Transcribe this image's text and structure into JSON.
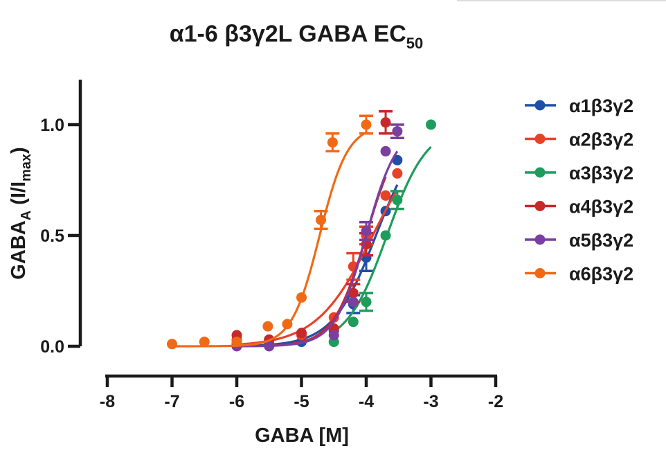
{
  "chart_data": {
    "type": "scatter",
    "title": "α1-6 β3γ2L GABA EC",
    "title_subscript": "50",
    "xlabel": "GABA [M]",
    "ylabel": "GABA",
    "ylabel_subscript": "A",
    "ylabel_suffix": " (I/I",
    "ylabel_suffix_subscript": "max",
    "ylabel_close": ")",
    "xlim": [
      -8,
      -2
    ],
    "ylim": [
      0,
      1.2
    ],
    "xticks": [
      -8,
      -7,
      -6,
      -5,
      -4,
      -3,
      -2
    ],
    "xtick_labels": [
      "-8",
      "-7",
      "-6",
      "-5",
      "-4",
      "-3",
      "-2"
    ],
    "yticks": [
      0,
      0.5,
      1
    ],
    "ytick_labels": [
      "0.0",
      "0.5",
      "1.0"
    ],
    "grid": false,
    "legend_position": "right",
    "series": [
      {
        "name": "α1β3γ2",
        "color": "#1f4fa8",
        "x": [
          -6,
          -5.5,
          -5,
          -4.5,
          -4.2,
          -4,
          -3.7,
          -3.52
        ],
        "y": [
          0.01,
          0.01,
          0.02,
          0.07,
          0.19,
          0.4,
          0.61,
          0.84
        ],
        "err": [
          0,
          0,
          0,
          0,
          0.04,
          0.06,
          0,
          0
        ],
        "fit": {
          "ec50_log": -3.85,
          "hill": 1.3
        }
      },
      {
        "name": "α2β3γ2",
        "color": "#e8412a",
        "x": [
          -6,
          -5.5,
          -5,
          -4.5,
          -4.2,
          -4,
          -3.7,
          -3.52
        ],
        "y": [
          0.03,
          0.03,
          0.05,
          0.13,
          0.36,
          0.5,
          0.68,
          0.78
        ],
        "err": [
          0,
          0,
          0,
          0,
          0.06,
          0.04,
          0,
          0
        ],
        "fit": {
          "ec50_log": -3.9,
          "hill": 1.0
        }
      },
      {
        "name": "α3β3γ2",
        "color": "#1e9c5c",
        "x": [
          -4.5,
          -4.2,
          -4,
          -3.7,
          -3.52,
          -3
        ],
        "y": [
          0.02,
          0.11,
          0.2,
          0.5,
          0.66,
          1.0
        ],
        "err": [
          0,
          0,
          0.04,
          0,
          0.04,
          0
        ],
        "fit": {
          "ec50_log": -3.68,
          "hill": 1.4
        }
      },
      {
        "name": "α4β3γ2",
        "color": "#c8282a",
        "x": [
          -6,
          -5.5,
          -5,
          -4.5,
          -4.2,
          -4,
          -3.7
        ],
        "y": [
          0.05,
          0.03,
          0.06,
          0.08,
          0.24,
          0.46,
          1.01
        ],
        "err": [
          0,
          0,
          0,
          0,
          0.04,
          0.05,
          0.05
        ],
        "fit": {
          "ec50_log": -4.0,
          "hill": 1.7
        }
      },
      {
        "name": "α5β3γ2",
        "color": "#7b3fa0",
        "x": [
          -6,
          -5.5,
          -4.5,
          -4.2,
          -4,
          -3.7,
          -3.52
        ],
        "y": [
          0.0,
          0.0,
          0.05,
          0.2,
          0.52,
          0.88,
          0.97
        ],
        "err": [
          0,
          0,
          0,
          0,
          0.04,
          0,
          0.03
        ],
        "fit": {
          "ec50_log": -4.0,
          "hill": 1.8
        }
      },
      {
        "name": "α6β3γ2",
        "color": "#f06a16",
        "x": [
          -7,
          -6.5,
          -6,
          -5.52,
          -5.22,
          -5,
          -4.7,
          -4.52,
          -4.0
        ],
        "y": [
          0.01,
          0.02,
          0.02,
          0.09,
          0.1,
          0.22,
          0.57,
          0.92,
          1.0
        ],
        "err": [
          0,
          0,
          0,
          0,
          0,
          0,
          0.04,
          0.04,
          0.04
        ],
        "fit": {
          "ec50_log": -4.72,
          "hill": 2.0
        }
      }
    ]
  }
}
